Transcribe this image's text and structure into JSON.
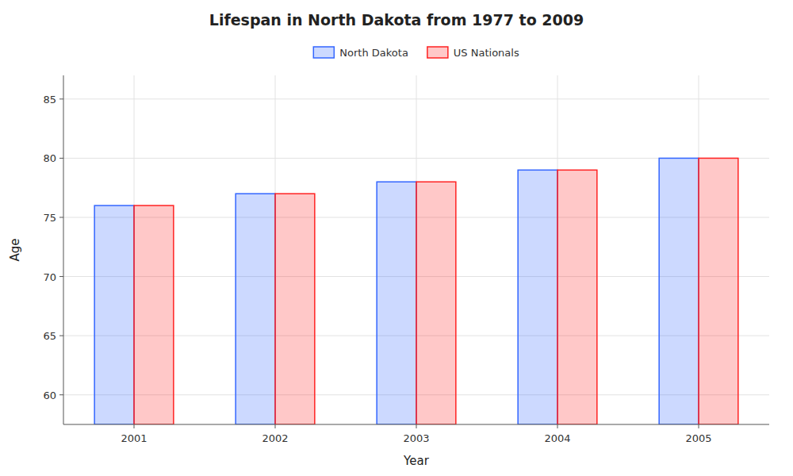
{
  "chart_data": {
    "type": "bar",
    "title": "Lifespan in North Dakota from 1977 to 2009",
    "x_label": "Year",
    "y_label": "Age",
    "categories": [
      "2001",
      "2002",
      "2003",
      "2004",
      "2005"
    ],
    "series": [
      {
        "name": "North Dakota",
        "color": "#3366ff",
        "values": [
          76,
          77,
          78,
          79,
          80
        ]
      },
      {
        "name": "US Nationals",
        "color": "#ff2222",
        "values": [
          76,
          77,
          78,
          79,
          80
        ]
      }
    ],
    "ylim": [
      57.5,
      87
    ],
    "yticks": [
      60,
      65,
      70,
      75,
      80,
      85
    ],
    "grid": true,
    "legend": "top"
  }
}
